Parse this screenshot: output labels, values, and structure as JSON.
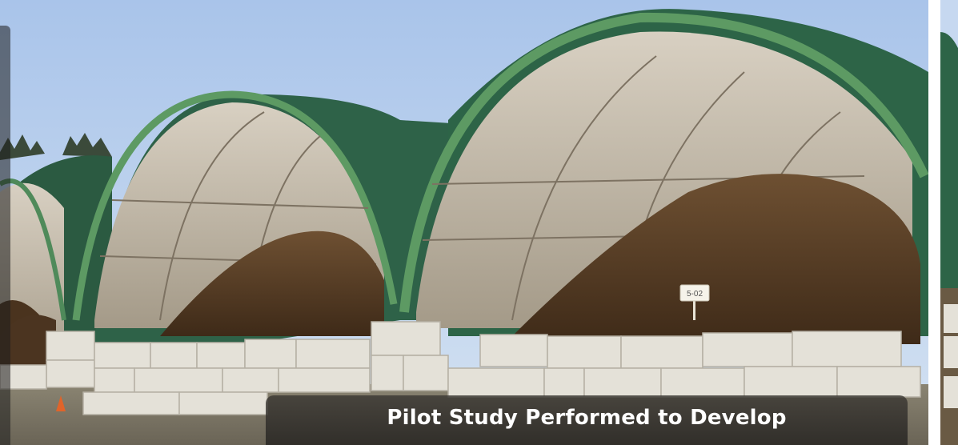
{
  "caption": {
    "text": "Pilot Study Performed to Develop"
  },
  "sign": {
    "text": "5-02"
  },
  "colors": {
    "sky": "#b8cfee",
    "tarp_green": "#2f6b4a",
    "tarp_inner": "#cfc6b6",
    "compost": "#5a3e26",
    "block": "#e4e1d8",
    "caption_bg": "#3a3733"
  }
}
